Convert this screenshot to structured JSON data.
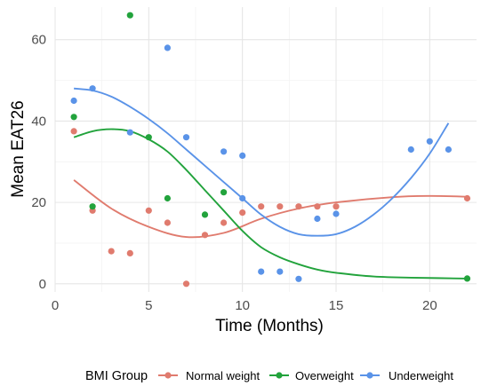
{
  "chart_data": {
    "type": "scatter",
    "title": "",
    "xlabel": "Time (Months)",
    "ylabel": "Mean EAT26",
    "xlim": [
      0,
      22.5
    ],
    "ylim": [
      -2,
      68
    ],
    "x_ticks": [
      0,
      5,
      10,
      15,
      20
    ],
    "y_ticks": [
      0,
      20,
      40,
      60
    ],
    "grid": true,
    "legend": {
      "title": "BMI Group",
      "position": "bottom"
    },
    "series": [
      {
        "name": "Normal weight",
        "color": "#e07b6e",
        "points": [
          [
            1,
            37.5
          ],
          [
            2,
            18
          ],
          [
            3,
            8
          ],
          [
            4,
            7.5
          ],
          [
            5,
            18
          ],
          [
            6,
            15
          ],
          [
            7,
            0
          ],
          [
            8,
            12
          ],
          [
            9,
            15
          ],
          [
            10,
            17.5
          ],
          [
            11,
            19
          ],
          [
            12,
            19
          ],
          [
            13,
            19
          ],
          [
            14,
            19
          ],
          [
            15,
            19
          ],
          [
            22,
            21
          ]
        ],
        "smooth": [
          [
            1,
            25.5
          ],
          [
            3,
            18.5
          ],
          [
            5,
            14
          ],
          [
            7,
            11.5
          ],
          [
            9,
            12.5
          ],
          [
            11,
            16
          ],
          [
            13,
            18.5
          ],
          [
            15,
            20
          ],
          [
            18,
            21.3
          ],
          [
            20,
            21.6
          ],
          [
            22,
            21.4
          ]
        ]
      },
      {
        "name": "Overweight",
        "color": "#22a33c",
        "points": [
          [
            1,
            41
          ],
          [
            2,
            19
          ],
          [
            4,
            66
          ],
          [
            5,
            36
          ],
          [
            6,
            21
          ],
          [
            8,
            17
          ],
          [
            9,
            22.5
          ],
          [
            22,
            1.3
          ]
        ],
        "smooth": [
          [
            1,
            36
          ],
          [
            2,
            37.5
          ],
          [
            3,
            38
          ],
          [
            4,
            37.5
          ],
          [
            5,
            35.5
          ],
          [
            6,
            32.5
          ],
          [
            7,
            28
          ],
          [
            8,
            23
          ],
          [
            9,
            18
          ],
          [
            10,
            13
          ],
          [
            11,
            9
          ],
          [
            12,
            6.5
          ],
          [
            13,
            4.8
          ],
          [
            14,
            3.5
          ],
          [
            15,
            2.7
          ],
          [
            17,
            1.8
          ],
          [
            19,
            1.5
          ],
          [
            22,
            1.3
          ]
        ]
      },
      {
        "name": "Underweight",
        "color": "#5a93e8",
        "points": [
          [
            1,
            45
          ],
          [
            2,
            48
          ],
          [
            4,
            37.2
          ],
          [
            6,
            58
          ],
          [
            7,
            36
          ],
          [
            9,
            32.5
          ],
          [
            10,
            31.5
          ],
          [
            10,
            21
          ],
          [
            11,
            3
          ],
          [
            12,
            3
          ],
          [
            13,
            1.2
          ],
          [
            14,
            16
          ],
          [
            15,
            17.2
          ],
          [
            19,
            33
          ],
          [
            20,
            35
          ],
          [
            21,
            33
          ]
        ],
        "smooth": [
          [
            1,
            48
          ],
          [
            2,
            47.5
          ],
          [
            3,
            46
          ],
          [
            4,
            43.5
          ],
          [
            5,
            40.5
          ],
          [
            6,
            37
          ],
          [
            7,
            33
          ],
          [
            8,
            29
          ],
          [
            9,
            25
          ],
          [
            10,
            21
          ],
          [
            11,
            17
          ],
          [
            12,
            14
          ],
          [
            13,
            12.2
          ],
          [
            14,
            11.8
          ],
          [
            15,
            12.2
          ],
          [
            16,
            14
          ],
          [
            17,
            17
          ],
          [
            18,
            21
          ],
          [
            19,
            26
          ],
          [
            20,
            32
          ],
          [
            21,
            39.5
          ]
        ]
      }
    ]
  }
}
